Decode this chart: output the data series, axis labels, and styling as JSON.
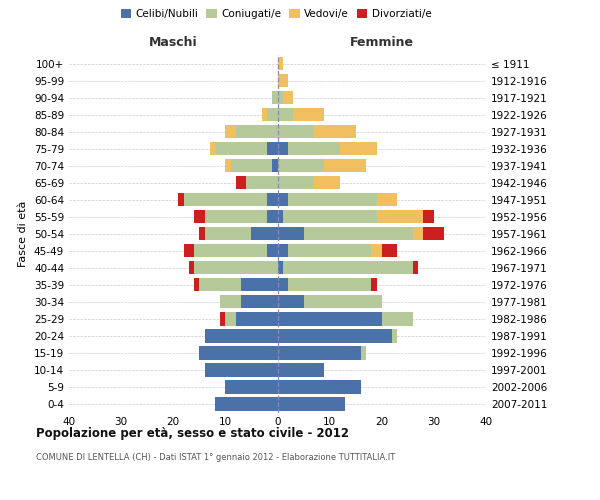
{
  "age_groups": [
    "0-4",
    "5-9",
    "10-14",
    "15-19",
    "20-24",
    "25-29",
    "30-34",
    "35-39",
    "40-44",
    "45-49",
    "50-54",
    "55-59",
    "60-64",
    "65-69",
    "70-74",
    "75-79",
    "80-84",
    "85-89",
    "90-94",
    "95-99",
    "100+"
  ],
  "birth_years": [
    "2007-2011",
    "2002-2006",
    "1997-2001",
    "1992-1996",
    "1987-1991",
    "1982-1986",
    "1977-1981",
    "1972-1976",
    "1967-1971",
    "1962-1966",
    "1957-1961",
    "1952-1956",
    "1947-1951",
    "1942-1946",
    "1937-1941",
    "1932-1936",
    "1927-1931",
    "1922-1926",
    "1917-1921",
    "1912-1916",
    "≤ 1911"
  ],
  "male": {
    "celibi": [
      12,
      10,
      14,
      15,
      14,
      8,
      7,
      7,
      0,
      2,
      5,
      2,
      2,
      0,
      1,
      2,
      0,
      0,
      0,
      0,
      0
    ],
    "coniugati": [
      0,
      0,
      0,
      0,
      0,
      2,
      4,
      8,
      16,
      14,
      9,
      12,
      16,
      6,
      8,
      10,
      8,
      2,
      1,
      0,
      0
    ],
    "vedovi": [
      0,
      0,
      0,
      0,
      0,
      0,
      0,
      0,
      0,
      0,
      0,
      0,
      0,
      0,
      1,
      1,
      2,
      1,
      0,
      0,
      0
    ],
    "divorziati": [
      0,
      0,
      0,
      0,
      0,
      1,
      0,
      1,
      1,
      2,
      1,
      2,
      1,
      2,
      0,
      0,
      0,
      0,
      0,
      0,
      0
    ]
  },
  "female": {
    "nubili": [
      13,
      16,
      9,
      16,
      22,
      20,
      5,
      2,
      1,
      2,
      5,
      1,
      2,
      0,
      0,
      2,
      0,
      0,
      0,
      0,
      0
    ],
    "coniugate": [
      0,
      0,
      0,
      1,
      1,
      6,
      15,
      16,
      25,
      16,
      21,
      18,
      17,
      7,
      9,
      10,
      7,
      3,
      1,
      0,
      0
    ],
    "vedove": [
      0,
      0,
      0,
      0,
      0,
      0,
      0,
      0,
      0,
      2,
      2,
      9,
      4,
      5,
      8,
      7,
      8,
      6,
      2,
      2,
      1
    ],
    "divorziate": [
      0,
      0,
      0,
      0,
      0,
      0,
      0,
      1,
      1,
      3,
      4,
      2,
      0,
      0,
      0,
      0,
      0,
      0,
      0,
      0,
      0
    ]
  },
  "colors": {
    "celibi_nubili": "#4a72a8",
    "coniugati": "#b5c99a",
    "vedovi": "#f0c060",
    "divorziati": "#cc2020"
  },
  "xlim": 40,
  "title": "Popolazione per età, sesso e stato civile - 2012",
  "subtitle": "COMUNE DI LENTELLA (CH) - Dati ISTAT 1° gennaio 2012 - Elaborazione TUTTITALIA.IT",
  "ylabel_left": "Fasce di età",
  "xlabel_left": "Maschi",
  "xlabel_right": "Femmine",
  "background_color": "#ffffff"
}
